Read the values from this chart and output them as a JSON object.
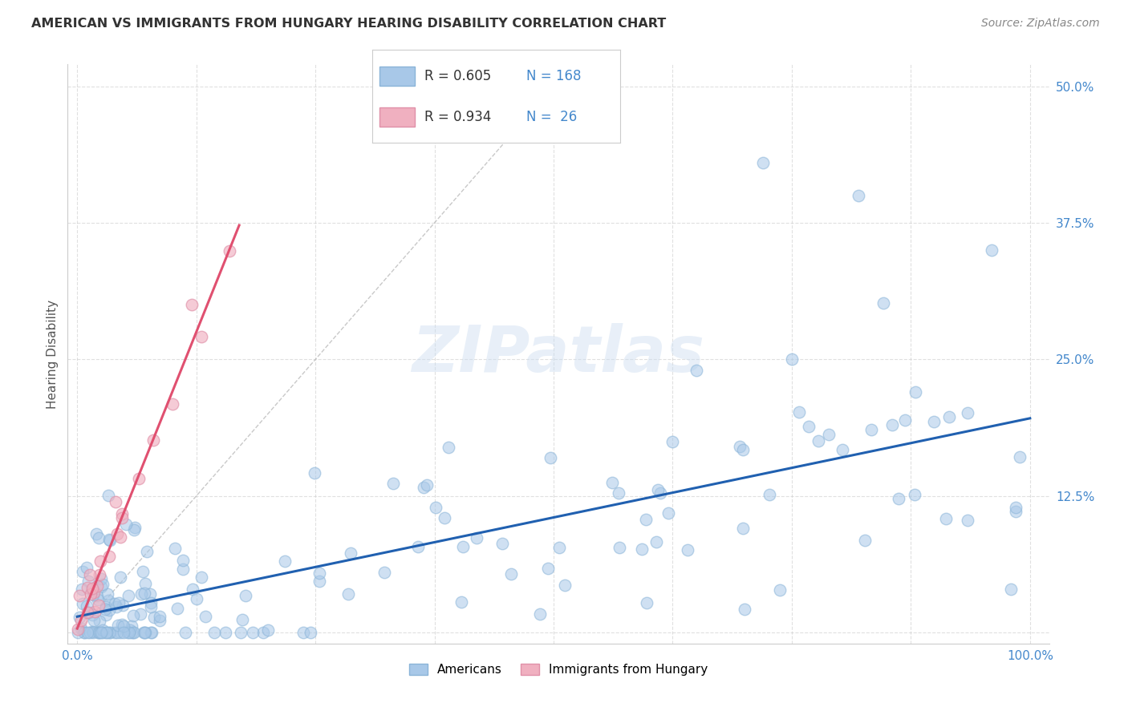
{
  "title": "AMERICAN VS IMMIGRANTS FROM HUNGARY HEARING DISABILITY CORRELATION CHART",
  "source": "Source: ZipAtlas.com",
  "ylabel": "Hearing Disability",
  "background_color": "#ffffff",
  "grid_color": "#cccccc",
  "watermark": "ZIPatlas",
  "blue_dot_color": "#a8c8e8",
  "blue_dot_edge": "#8ab4d8",
  "pink_dot_color": "#f0b0c0",
  "pink_dot_edge": "#e090a8",
  "line_blue": "#2060b0",
  "line_pink": "#e05070",
  "axis_tick_color": "#4488cc",
  "ylabel_color": "#555555",
  "title_color": "#333333",
  "source_color": "#888888",
  "legend_r1_black": "R = 0.605",
  "legend_n1": "N = 168",
  "legend_r2_black": "R = 0.934",
  "legend_n2": "N =  26",
  "xmin": 0,
  "xmax": 100,
  "ymin": 0,
  "ymax": 50,
  "xticks": [
    0,
    12.5,
    25,
    37.5,
    50,
    62.5,
    75,
    87.5,
    100
  ],
  "xticklabels": [
    "0.0%",
    "",
    "",
    "",
    "",
    "",
    "",
    "",
    "100.0%"
  ],
  "yticks": [
    0,
    12.5,
    25,
    37.5,
    50
  ],
  "yticklabels": [
    "",
    "12.5%",
    "25.0%",
    "37.5%",
    "50.0%"
  ]
}
